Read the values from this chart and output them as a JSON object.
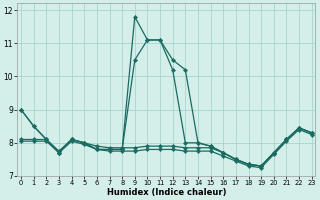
{
  "xlabel": "Humidex (Indice chaleur)",
  "background_color": "#d4eeea",
  "grid_color": "#aad4ce",
  "line_color": "#1a6b60",
  "x_values": [
    0,
    1,
    2,
    3,
    4,
    5,
    6,
    7,
    8,
    9,
    10,
    11,
    12,
    13,
    14,
    15,
    16,
    17,
    18,
    19,
    20,
    21,
    22,
    23
  ],
  "series": [
    [
      9.0,
      8.5,
      8.1,
      7.7,
      8.1,
      8.0,
      7.8,
      7.8,
      7.8,
      11.8,
      11.1,
      11.1,
      10.5,
      10.2,
      8.0,
      7.9,
      7.7,
      7.5,
      7.35,
      7.3,
      7.7,
      8.1,
      8.45,
      8.3
    ],
    [
      9.0,
      8.5,
      8.1,
      7.7,
      8.1,
      8.0,
      7.8,
      7.8,
      7.8,
      10.5,
      11.1,
      11.1,
      10.2,
      8.0,
      8.0,
      7.9,
      7.7,
      7.5,
      7.35,
      7.3,
      7.7,
      8.1,
      8.45,
      8.3
    ],
    [
      8.1,
      8.1,
      8.1,
      7.75,
      8.1,
      8.0,
      7.9,
      7.85,
      7.85,
      7.85,
      7.9,
      7.9,
      7.9,
      7.85,
      7.85,
      7.85,
      7.7,
      7.5,
      7.35,
      7.3,
      7.7,
      8.1,
      8.45,
      8.3
    ],
    [
      8.05,
      8.05,
      8.05,
      7.7,
      8.05,
      7.95,
      7.8,
      7.75,
      7.75,
      7.75,
      7.8,
      7.8,
      7.8,
      7.75,
      7.75,
      7.75,
      7.6,
      7.45,
      7.3,
      7.25,
      7.65,
      8.05,
      8.4,
      8.25
    ]
  ],
  "ylim": [
    7.0,
    12.2
  ],
  "xlim": [
    -0.3,
    23.3
  ],
  "yticks": [
    7,
    8,
    9,
    10,
    11,
    12
  ],
  "xticks": [
    0,
    1,
    2,
    3,
    4,
    5,
    6,
    7,
    8,
    9,
    10,
    11,
    12,
    13,
    14,
    15,
    16,
    17,
    18,
    19,
    20,
    21,
    22,
    23
  ],
  "marker": "D",
  "markersize": 2.2,
  "linewidth": 0.9
}
